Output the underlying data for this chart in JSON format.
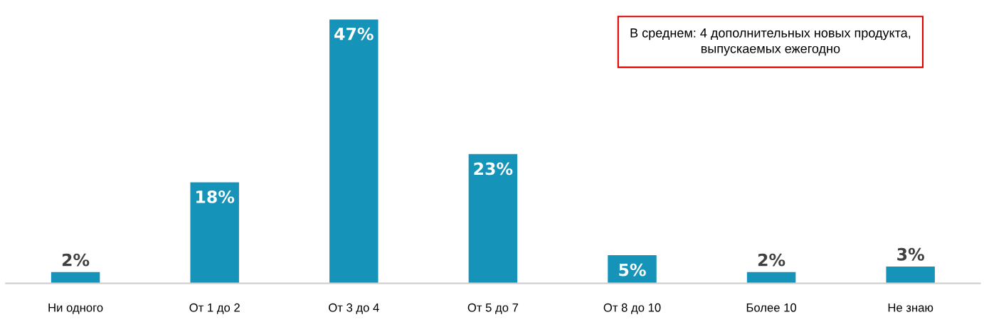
{
  "chart_data": {
    "type": "bar",
    "categories": [
      "Ни одного",
      "От 1 до 2",
      "От 3 до 4",
      "От 5 до 7",
      "От 8 до 10",
      "Более 10",
      "Не знаю"
    ],
    "values": [
      2,
      18,
      47,
      23,
      5,
      2,
      3
    ],
    "value_labels": [
      "2%",
      "18%",
      "47%",
      "23%",
      "5%",
      "2%",
      "3%"
    ],
    "color": "#1593b8",
    "annotations": [
      "В среднем: 4 дополнительных новых продукта,\nвыпускаемых ежегодно"
    ],
    "grid": false,
    "legend": false
  }
}
